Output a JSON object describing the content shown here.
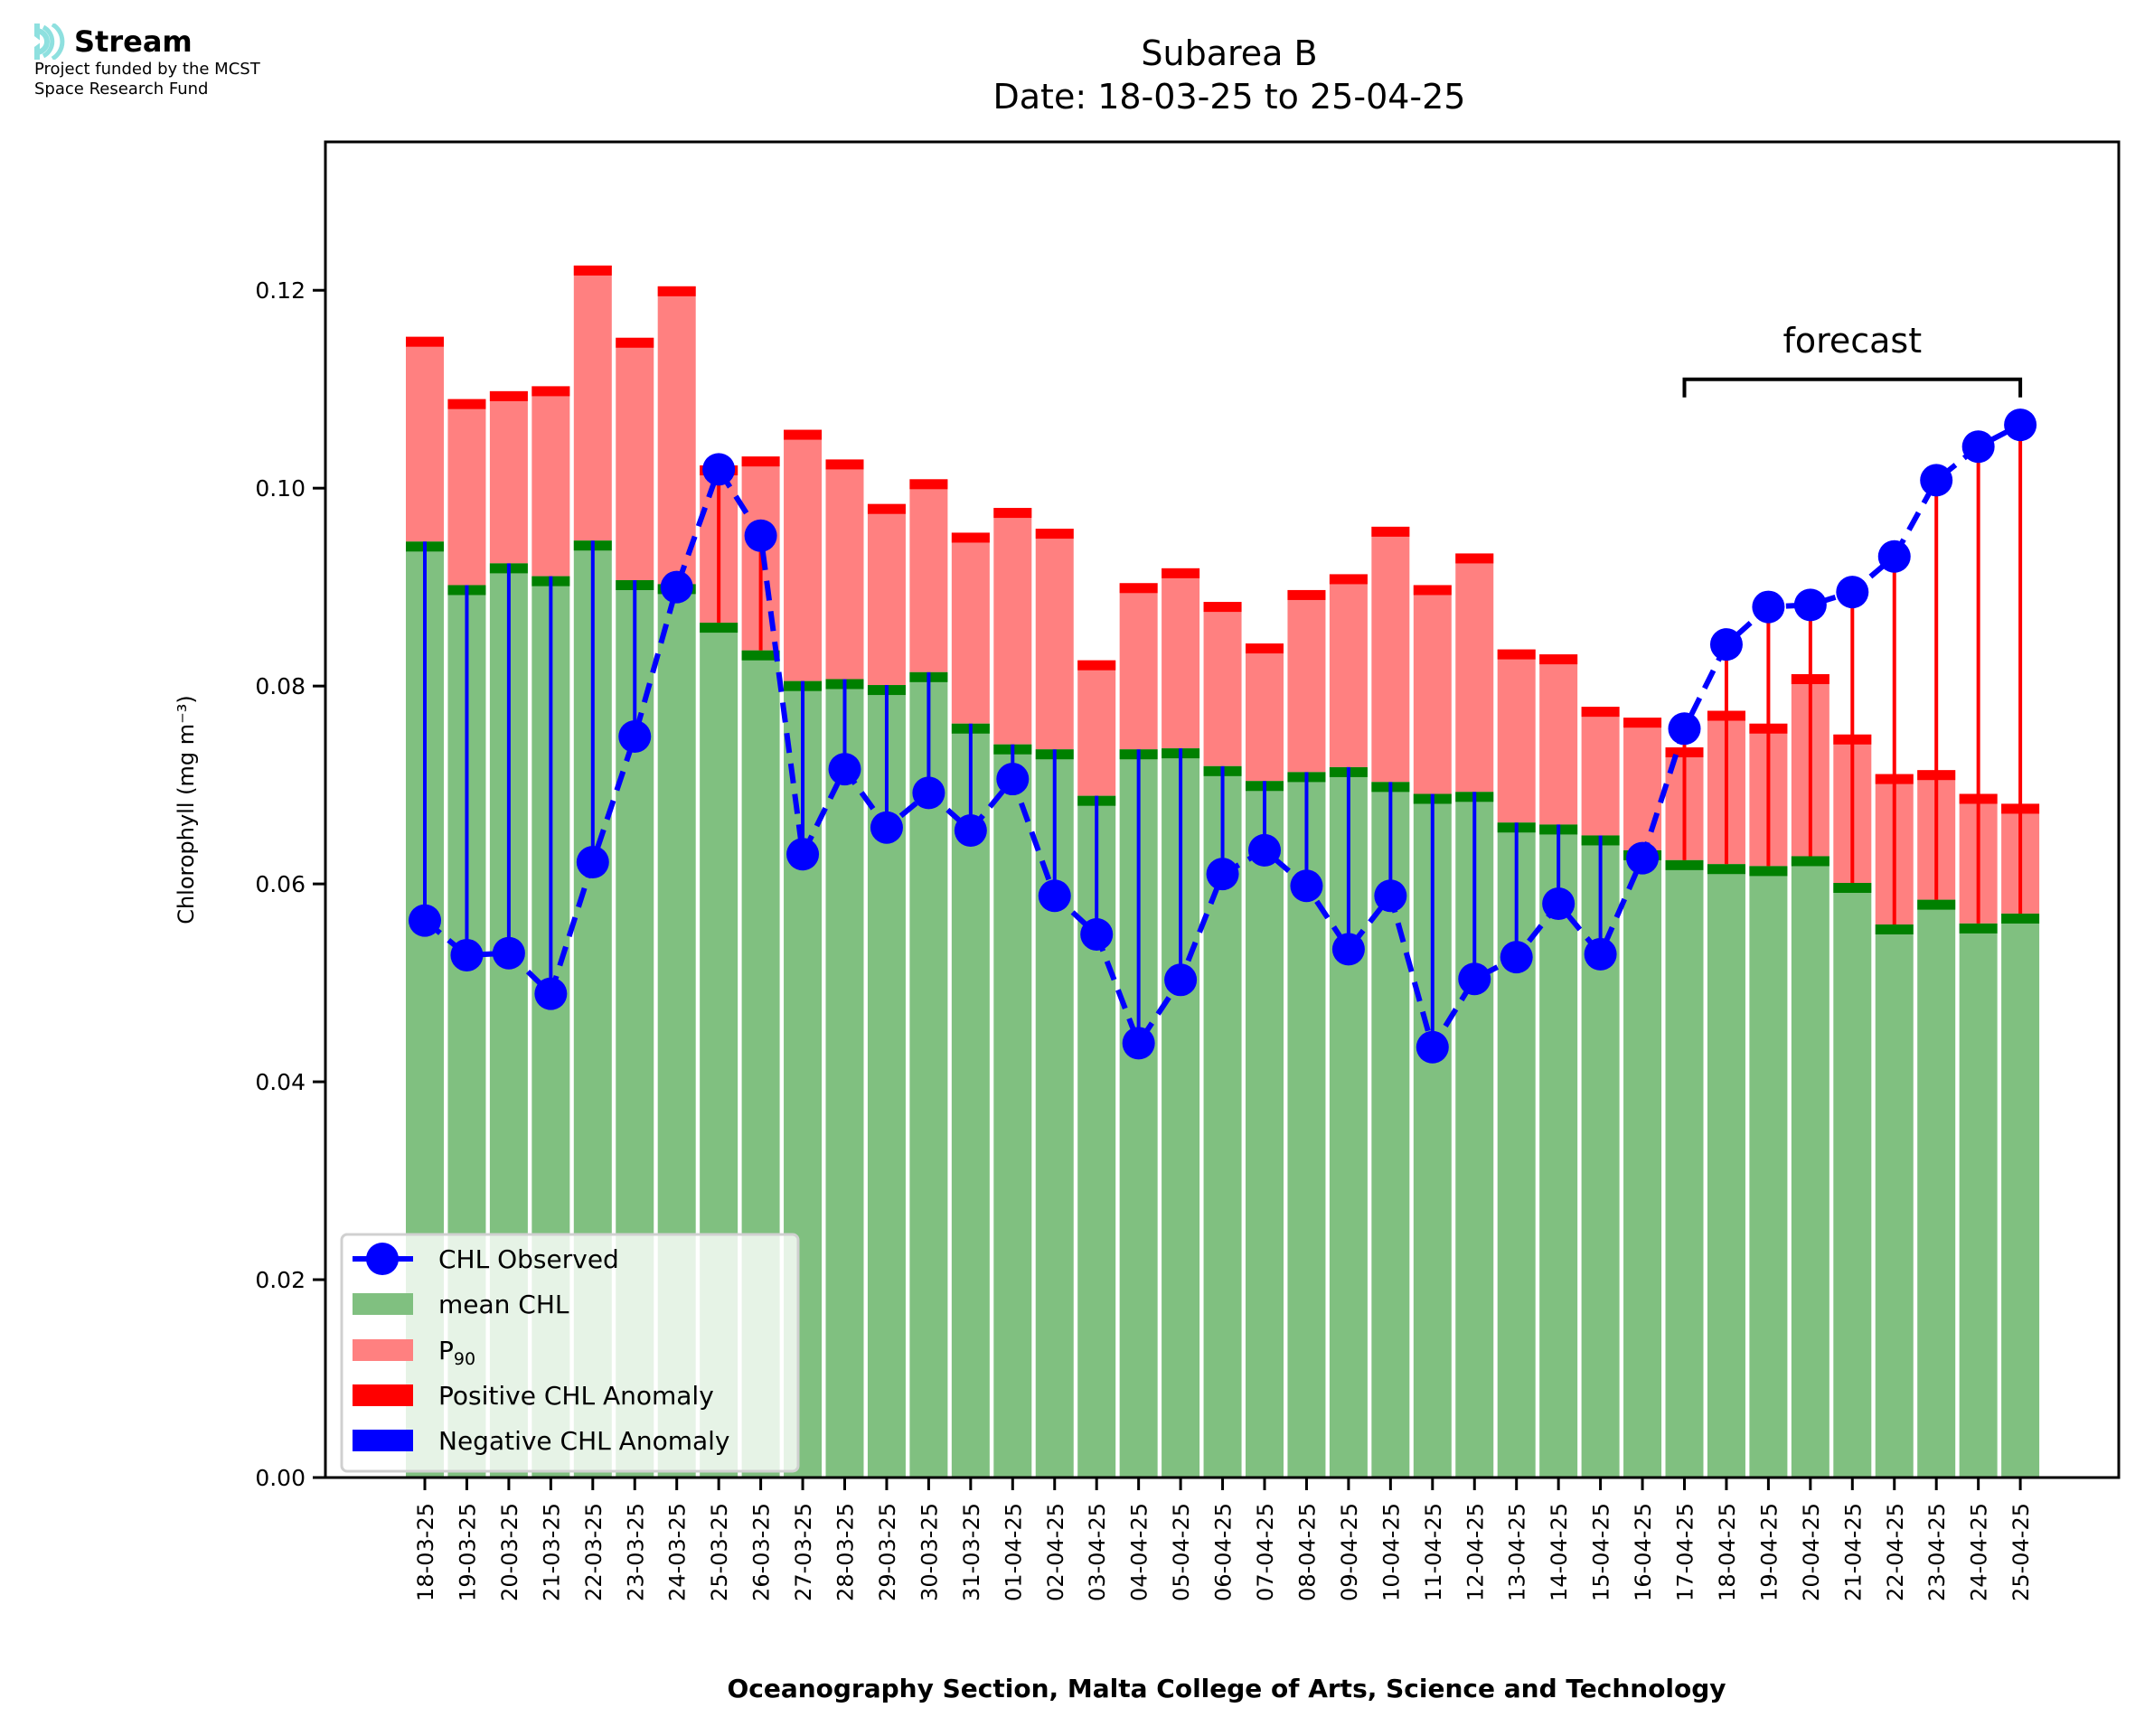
{
  "logo": {
    "name": "Stream",
    "subtitle_line1": "Project funded by the MCST",
    "subtitle_line2": "Space Research Fund",
    "icon": "stream-waves-icon",
    "icon_color": "#8ee0df"
  },
  "colors": {
    "mean_fill": "#80c080",
    "mean_band": "#008000",
    "p90_fill": "#ff8080",
    "p90_band": "#ff0000",
    "observed": "#0000ff",
    "positive_anomaly": "#ff0000",
    "negative_anomaly": "#0000ff"
  },
  "chart_data": {
    "type": "bar",
    "title": "Subarea B",
    "subtitle": "Date: 18-03-25 to 25-04-25",
    "xlabel": "Oceanography Section, Malta College of Arts, Science and Technology",
    "ylabel": "Chlorophyll (mg m⁻³)",
    "ylim": [
      0,
      0.135
    ],
    "yticks": [
      "0.00",
      "0.02",
      "0.04",
      "0.06",
      "0.08",
      "0.10",
      "0.12"
    ],
    "ytick_values": [
      0,
      0.02,
      0.04,
      0.06,
      0.08,
      0.1,
      0.12
    ],
    "grid": false,
    "legend_position": "lower-left",
    "legend": [
      {
        "label": "CHL Observed",
        "kind": "line-marker"
      },
      {
        "label": "mean CHL",
        "kind": "patch-mean"
      },
      {
        "label": "P",
        "sub": "90",
        "kind": "patch-p90"
      },
      {
        "label": "Positive CHL Anomaly",
        "kind": "patch-positive"
      },
      {
        "label": "Negative CHL Anomaly",
        "kind": "patch-negative"
      }
    ],
    "annotation": {
      "text": "forecast",
      "from": "17-04-25",
      "to": "25-04-25",
      "y": 0.111
    },
    "categories": [
      "18-03-25",
      "19-03-25",
      "20-03-25",
      "21-03-25",
      "22-03-25",
      "23-03-25",
      "24-03-25",
      "25-03-25",
      "26-03-25",
      "27-03-25",
      "28-03-25",
      "29-03-25",
      "30-03-25",
      "31-03-25",
      "01-04-25",
      "02-04-25",
      "03-04-25",
      "04-04-25",
      "05-04-25",
      "06-04-25",
      "07-04-25",
      "08-04-25",
      "09-04-25",
      "10-04-25",
      "11-04-25",
      "12-04-25",
      "13-04-25",
      "14-04-25",
      "15-04-25",
      "16-04-25",
      "17-04-25",
      "18-04-25",
      "19-04-25",
      "20-04-25",
      "21-04-25",
      "22-04-25",
      "23-04-25",
      "24-04-25",
      "25-04-25"
    ],
    "series": [
      {
        "name": "mean CHL",
        "values": [
          0.0946,
          0.0902,
          0.0924,
          0.0911,
          0.0947,
          0.0907,
          0.0903,
          0.0864,
          0.0836,
          0.0805,
          0.0807,
          0.0801,
          0.0814,
          0.0762,
          0.0741,
          0.0736,
          0.0689,
          0.0736,
          0.0737,
          0.0719,
          0.0704,
          0.0713,
          0.0718,
          0.0703,
          0.0691,
          0.0693,
          0.0662,
          0.066,
          0.0649,
          0.0634,
          0.0624,
          0.062,
          0.0618,
          0.0628,
          0.0601,
          0.0559,
          0.0584,
          0.056,
          0.057
        ]
      },
      {
        "name": "P90",
        "values": [
          0.1153,
          0.109,
          0.1098,
          0.1103,
          0.1225,
          0.1152,
          0.1204,
          0.1023,
          0.1032,
          0.1059,
          0.1029,
          0.0984,
          0.1009,
          0.0955,
          0.098,
          0.0959,
          0.0826,
          0.0904,
          0.0919,
          0.0885,
          0.0843,
          0.0897,
          0.0913,
          0.0961,
          0.0902,
          0.0934,
          0.0837,
          0.0832,
          0.0779,
          0.0768,
          0.0738,
          0.0775,
          0.0762,
          0.0812,
          0.0751,
          0.0711,
          0.0715,
          0.0691,
          0.0681
        ]
      },
      {
        "name": "CHL Observed",
        "values": [
          0.0563,
          0.0528,
          0.053,
          0.0489,
          0.0622,
          0.0749,
          0.09,
          0.1019,
          0.0952,
          0.063,
          0.0716,
          0.0657,
          0.0692,
          0.0654,
          0.0706,
          0.0588,
          0.0549,
          0.0439,
          0.0503,
          0.061,
          0.0634,
          0.0598,
          0.0534,
          0.0588,
          0.0435,
          0.0504,
          0.0526,
          0.058,
          0.0529,
          0.0626,
          0.0757,
          0.0842,
          0.088,
          0.0882,
          0.0895,
          0.0931,
          0.1008,
          0.1042,
          0.1064
        ]
      }
    ]
  }
}
